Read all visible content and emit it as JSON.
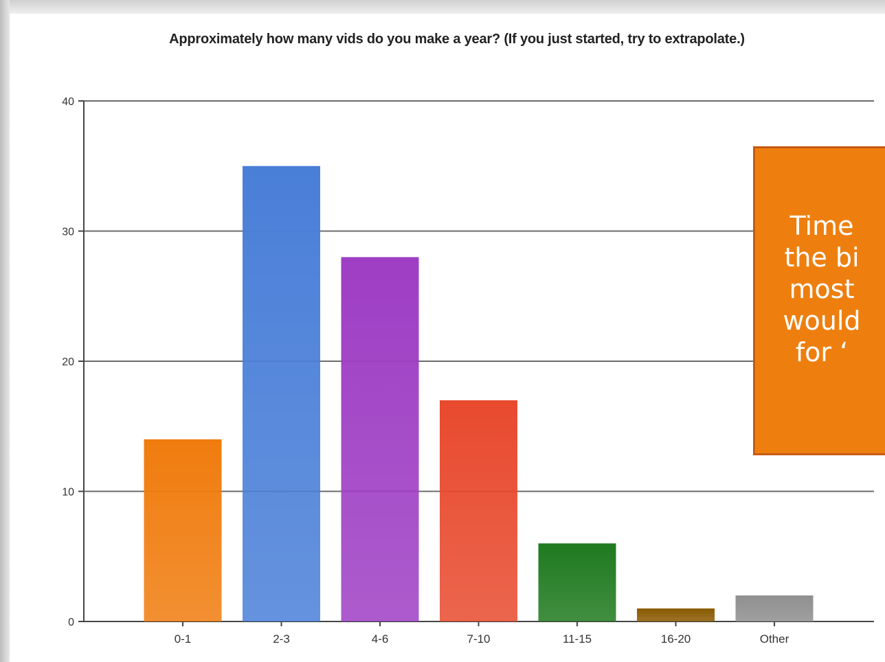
{
  "chart_data": {
    "type": "bar",
    "title": "Approximately how many vids do you make a year? (If you just started, try to extrapolate.)",
    "categories": [
      "0-1",
      "2-3",
      "4-6",
      "7-10",
      "11-15",
      "16-20",
      "Other"
    ],
    "values": [
      14,
      35,
      28,
      17,
      6,
      1,
      2
    ],
    "colors": [
      "#f07c0e",
      "#4a7fd8",
      "#9e3ec4",
      "#e84a2e",
      "#1f7a1f",
      "#8a5a00",
      "#8f8f8f"
    ],
    "ylim": [
      0,
      40
    ],
    "yticks": [
      0,
      10,
      20,
      30,
      40
    ],
    "grid": true,
    "xlabel": "",
    "ylabel": ""
  },
  "callout": {
    "lines": [
      "Time",
      "the bi",
      "most",
      "would",
      "for ‘"
    ]
  }
}
